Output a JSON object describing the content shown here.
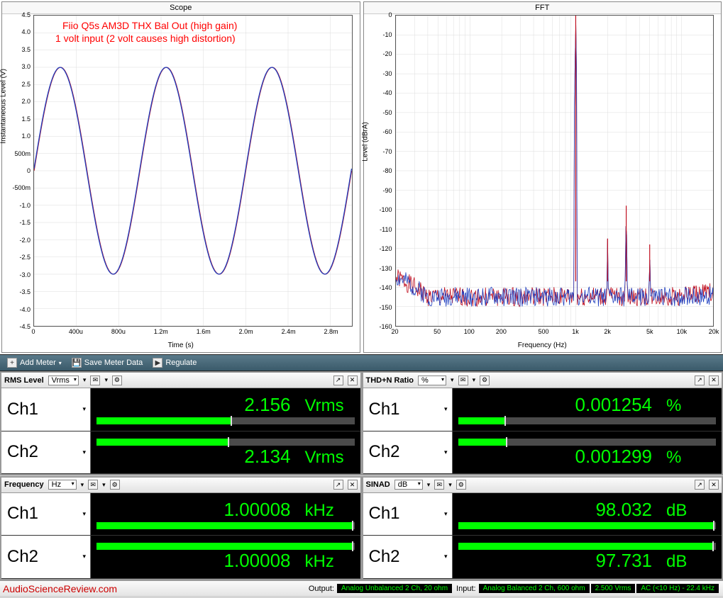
{
  "scope": {
    "title": "Scope",
    "ylabel": "Instantaneous Level (V)",
    "xlabel": "Time (s)",
    "ylim": [
      -4.5,
      4.5
    ],
    "ytick_step": 0.5,
    "yticks": [
      "4.5",
      "4.0",
      "3.5",
      "3.0",
      "2.5",
      "2.0",
      "1.5",
      "1.0",
      "500m",
      "0",
      "-500m",
      "-1.0",
      "-1.5",
      "-2.0",
      "-2.5",
      "-3.0",
      "-3.5",
      "-4.0",
      "-4.5"
    ],
    "xticks": [
      "0",
      "400u",
      "800u",
      "1.2m",
      "1.6m",
      "2.0m",
      "2.4m",
      "2.8m"
    ],
    "xlim": [
      0,
      0.003
    ],
    "annotation_l1": "Fiio Q5s AM3D THX Bal Out (high gain)",
    "annotation_l2": "1 volt input (2 volt causes high distortion)",
    "amplitude": 3.0,
    "frequency_hz": 1000,
    "colors": [
      "#c01020",
      "#2040c0"
    ],
    "background": "#ffffff",
    "grid_color": "#dddddd"
  },
  "fft": {
    "title": "FFT",
    "ylabel": "Level (dBrA)",
    "xlabel": "Frequency (Hz)",
    "ylim": [
      -160,
      0
    ],
    "ytick_step": 10,
    "yticks": [
      "0",
      "-10",
      "-20",
      "-30",
      "-40",
      "-50",
      "-60",
      "-70",
      "-80",
      "-90",
      "-100",
      "-110",
      "-120",
      "-130",
      "-140",
      "-150",
      "-160"
    ],
    "xticks_log": [
      20,
      50,
      100,
      200,
      500,
      1000,
      2000,
      5000,
      10000,
      20000
    ],
    "xtick_labels": [
      "20",
      "50",
      "100",
      "200",
      "500",
      "1k",
      "2k",
      "5k",
      "10k",
      "20k"
    ],
    "xlim": [
      20,
      20000
    ],
    "noise_floor_db": -145,
    "noise_jitter_db": 5,
    "peaks": [
      {
        "hz": 1000,
        "db": 0
      },
      {
        "hz": 2000,
        "db": -115
      },
      {
        "hz": 3000,
        "db": -98
      },
      {
        "hz": 5000,
        "db": -118
      }
    ],
    "colors": [
      "#c01020",
      "#2040c0"
    ],
    "background": "#ffffff",
    "grid_color": "#dddddd"
  },
  "toolbar": {
    "add_meter": "Add Meter",
    "save_meter": "Save Meter Data",
    "regulate": "Regulate"
  },
  "meters": [
    {
      "title": "RMS Level",
      "unit_sel": "Vrms",
      "ch1": {
        "label": "Ch1",
        "value": "2.156",
        "unit": "Vrms",
        "fill": 0.52
      },
      "ch2": {
        "label": "Ch2",
        "value": "2.134",
        "unit": "Vrms",
        "fill": 0.51
      }
    },
    {
      "title": "THD+N Ratio",
      "unit_sel": "%",
      "ch1": {
        "label": "Ch1",
        "value": "0.001254",
        "unit": "%",
        "fill": 0.18
      },
      "ch2": {
        "label": "Ch2",
        "value": "0.001299",
        "unit": "%",
        "fill": 0.185
      }
    },
    {
      "title": "Frequency",
      "unit_sel": "Hz",
      "ch1": {
        "label": "Ch1",
        "value": "1.00008",
        "unit": "kHz",
        "fill": 0.99
      },
      "ch2": {
        "label": "Ch2",
        "value": "1.00008",
        "unit": "kHz",
        "fill": 0.99
      }
    },
    {
      "title": "SINAD",
      "unit_sel": "dB",
      "ch1": {
        "label": "Ch1",
        "value": "98.032",
        "unit": "dB",
        "fill": 0.99
      },
      "ch2": {
        "label": "Ch2",
        "value": "97.731",
        "unit": "dB",
        "fill": 0.985
      }
    }
  ],
  "footer": {
    "brand": "AudioScienceReview.com",
    "output_label": "Output:",
    "output_val": "Analog Unbalanced 2 Ch, 20 ohm",
    "input_label": "Input:",
    "input_val": "Analog Balanced 2 Ch, 600 ohm",
    "vrms": "2.500 Vrms",
    "bw": "AC (<10 Hz) - 22.4 kHz"
  },
  "accent_green": "#00ff00"
}
